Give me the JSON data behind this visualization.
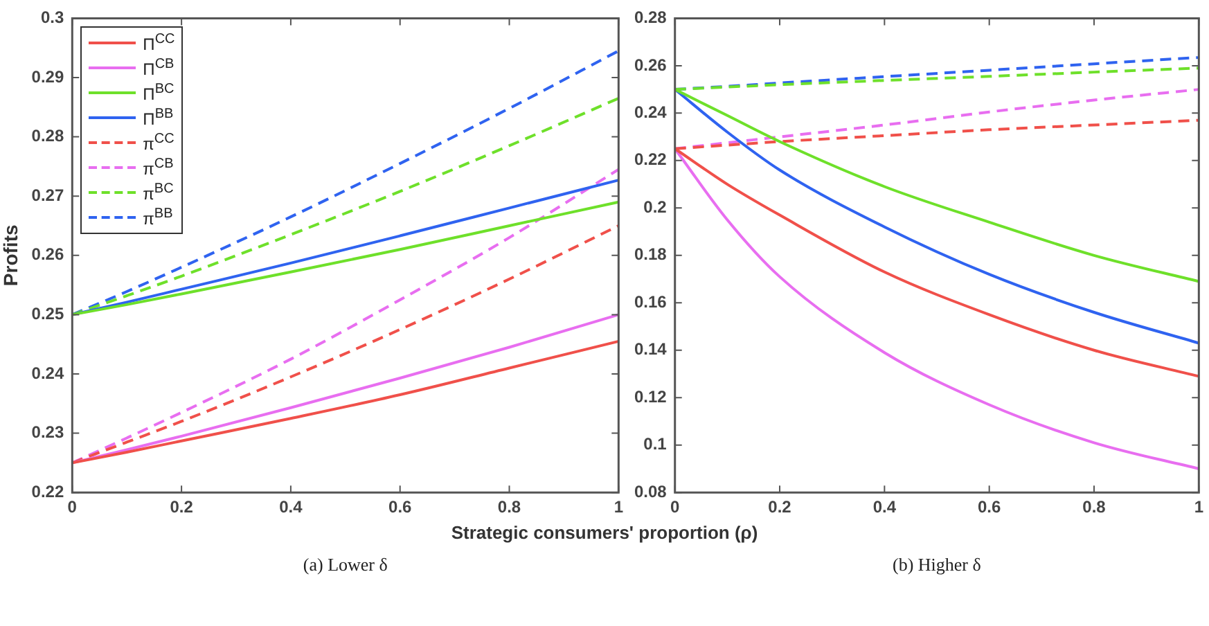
{
  "chart_data": [
    {
      "type": "line",
      "ylabel": "Profits",
      "xlabel": "Strategic consumers' proportion (ρ)",
      "annotations": [
        "(a) Lower  δ"
      ],
      "xlim": [
        0,
        1
      ],
      "xticks": [
        0,
        0.2,
        0.4,
        0.6,
        0.8,
        1
      ],
      "ylim": [
        0.22,
        0.3
      ],
      "yticks": [
        0.22,
        0.23,
        0.24,
        0.25,
        0.26,
        0.27,
        0.28,
        0.29,
        0.3
      ],
      "grid": false,
      "legend": "top left",
      "marker": "none",
      "x": [
        0,
        0.1,
        0.2,
        0.4,
        0.6,
        0.8,
        1
      ],
      "series": [
        {
          "name": "Π$^{CC}$",
          "color": "#f0504a",
          "line_style": "solid",
          "values": [
            0.225,
            0.2268,
            0.2287,
            0.2325,
            0.2365,
            0.241,
            0.2455
          ]
        },
        {
          "name": "Π$^{CB}$",
          "color": "#e86ef0",
          "line_style": "solid",
          "values": [
            0.225,
            0.2272,
            0.2295,
            0.2343,
            0.2393,
            0.2445,
            0.25
          ]
        },
        {
          "name": "Π$^{BC}$",
          "color": "#6ee02a",
          "line_style": "solid",
          "values": [
            0.25,
            0.2517,
            0.2535,
            0.2572,
            0.261,
            0.265,
            0.269
          ]
        },
        {
          "name": "Π$^{BB}$",
          "color": "#2f63f0",
          "line_style": "solid",
          "values": [
            0.25,
            0.2521,
            0.2543,
            0.2587,
            0.2633,
            0.268,
            0.2727
          ]
        },
        {
          "name": "π$^{CC}$",
          "color": "#f0504a",
          "line_style": "dashed",
          "values": [
            0.225,
            0.2285,
            0.232,
            0.2395,
            0.2475,
            0.256,
            0.265
          ]
        },
        {
          "name": "π$^{CB}$",
          "color": "#e86ef0",
          "line_style": "dashed",
          "values": [
            0.225,
            0.2292,
            0.2335,
            0.2425,
            0.2525,
            0.263,
            0.2745
          ]
        },
        {
          "name": "π$^{BC}$",
          "color": "#6ee02a",
          "line_style": "dashed",
          "values": [
            0.25,
            0.2532,
            0.2565,
            0.2635,
            0.2708,
            0.2785,
            0.2865
          ]
        },
        {
          "name": "π$^{BB}$",
          "color": "#2f63f0",
          "line_style": "dashed",
          "values": [
            0.25,
            0.2539,
            0.258,
            0.2665,
            0.2755,
            0.2848,
            0.2945
          ]
        }
      ]
    },
    {
      "type": "line",
      "annotations": [
        "(b) Higher  δ"
      ],
      "xlim": [
        0,
        1
      ],
      "xticks": [
        0,
        0.2,
        0.4,
        0.6,
        0.8,
        1
      ],
      "ylim": [
        0.08,
        0.28
      ],
      "yticks": [
        0.08,
        0.1,
        0.12,
        0.14,
        0.16,
        0.18,
        0.2,
        0.22,
        0.24,
        0.26,
        0.28
      ],
      "grid": false,
      "marker": "none",
      "x": [
        0,
        0.1,
        0.2,
        0.4,
        0.6,
        0.8,
        1
      ],
      "series": [
        {
          "color": "#f0504a",
          "line_style": "solid",
          "values": [
            0.225,
            0.21,
            0.197,
            0.173,
            0.155,
            0.14,
            0.129
          ]
        },
        {
          "color": "#e86ef0",
          "line_style": "solid",
          "values": [
            0.225,
            0.195,
            0.171,
            0.139,
            0.117,
            0.101,
            0.09
          ]
        },
        {
          "color": "#6ee02a",
          "line_style": "solid",
          "values": [
            0.25,
            0.239,
            0.228,
            0.209,
            0.194,
            0.18,
            0.169
          ]
        },
        {
          "color": "#2f63f0",
          "line_style": "solid",
          "values": [
            0.25,
            0.232,
            0.216,
            0.192,
            0.172,
            0.156,
            0.143
          ]
        },
        {
          "color": "#f0504a",
          "line_style": "dashed",
          "values": [
            0.225,
            0.2265,
            0.228,
            0.2305,
            0.233,
            0.235,
            0.237
          ]
        },
        {
          "color": "#e86ef0",
          "line_style": "dashed",
          "values": [
            0.225,
            0.2275,
            0.23,
            0.235,
            0.2405,
            0.2455,
            0.25
          ]
        },
        {
          "color": "#6ee02a",
          "line_style": "dashed",
          "values": [
            0.25,
            0.251,
            0.252,
            0.2538,
            0.2555,
            0.2573,
            0.259
          ]
        },
        {
          "color": "#2f63f0",
          "line_style": "dashed",
          "values": [
            0.25,
            0.2513,
            0.2527,
            0.2554,
            0.2581,
            0.2608,
            0.2635
          ]
        }
      ]
    }
  ]
}
